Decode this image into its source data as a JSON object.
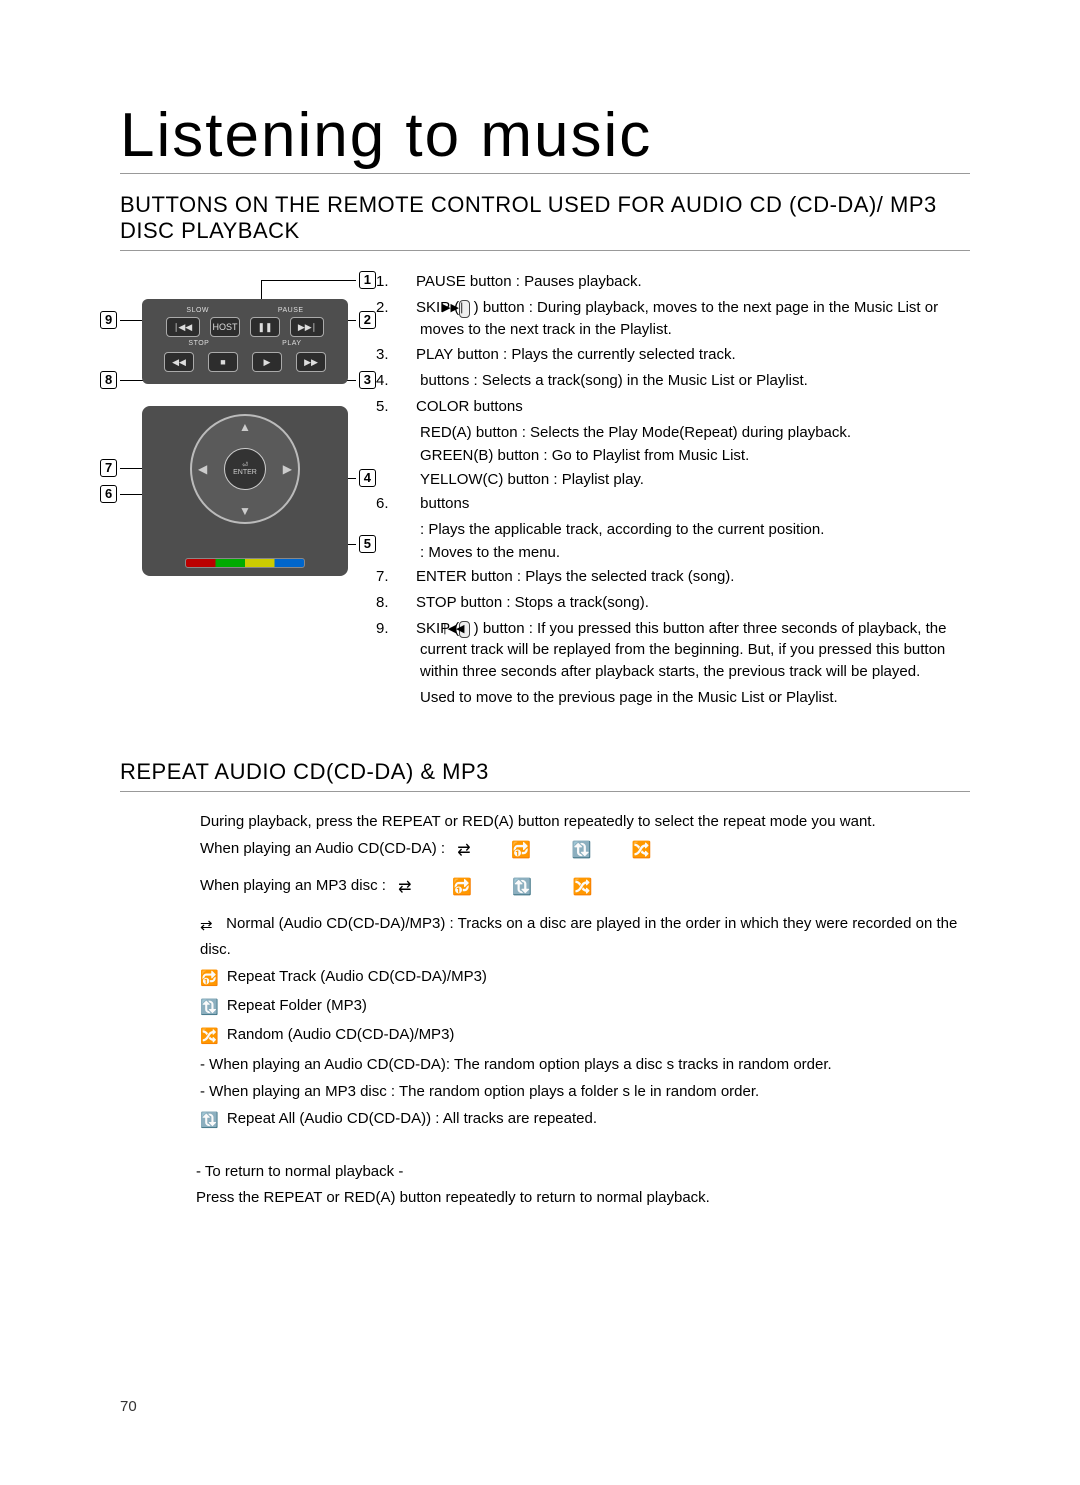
{
  "title": "Listening to music",
  "section1_heading": "BUTTONS ON THE REMOTE CONTROL USED FOR AUDIO CD (CD-DA)/ MP3 DISC PLAYBACK",
  "section2_heading": "REPEAT AUDIO CD(CD-DA) & MP3",
  "page_number": "70",
  "remote": {
    "panel1_labels": [
      "SLOW",
      "PAUSE"
    ],
    "panel1b_labels": [
      "STOP",
      "PLAY"
    ],
    "row1": [
      "∣◀◀",
      "HOST",
      "❚❚",
      "▶▶∣"
    ],
    "row2": [
      "◀◀",
      "■",
      "▶",
      "▶▶"
    ],
    "center_top": "⏎",
    "center_label": "ENTER",
    "callouts": {
      "c1": "1",
      "c2": "2",
      "c3": "3",
      "c4": "4",
      "c5": "5",
      "c6": "6",
      "c7": "7",
      "c8": "8",
      "c9": "9"
    }
  },
  "rc_items": [
    {
      "n": "1.",
      "text": "PAUSE button : Pauses playback."
    },
    {
      "n": "2.",
      "text_pre": "SKIP (",
      "icon": "▶▶∣",
      "text_post": " ) button : During playback, moves to the next page in the Music List or moves to the next track in the Playlist."
    },
    {
      "n": "3.",
      "text": "PLAY button : Plays the currently selected track."
    },
    {
      "n": "4.",
      "text": "    buttons : Selects a track(song) in the Music List or Playlist."
    },
    {
      "n": "5.",
      "text": "COLOR buttons",
      "sub": [
        "RED(A) button : Selects the Play Mode(Repeat) during playback.",
        "GREEN(B) button : Go to Playlist from Music List.",
        "YELLOW(C) button : Playlist play."
      ]
    },
    {
      "n": "6.",
      "text": "       buttons",
      "sub": [
        ": Plays the applicable track, according to the current position.",
        ": Moves to the menu."
      ]
    },
    {
      "n": "7.",
      "text": "ENTER button : Plays the selected track (song)."
    },
    {
      "n": "8.",
      "text": "STOP button : Stops a track(song)."
    },
    {
      "n": "9.",
      "text_pre": "SKIP (",
      "icon": "∣◀◀",
      "text_post": " ) button : If you pressed this button after three seconds of playback, the current track will be replayed from the beginning. But, if you pressed this button within three seconds after playback starts, the previous track will be played.",
      "tail": "Used to move to the previous page in the Music List or Playlist."
    }
  ],
  "repeat": {
    "intro": "During playback, press the REPEAT or RED(A) button repeatedly to select the repeat mode you want.",
    "audio_line_label": "When playing an Audio CD(CD-DA) : ",
    "audio_icons": "⇄   🔂   🔃   🔀",
    "mp3_line_label": "When playing an MP3 disc : ",
    "mp3_icons": "⇄   🔂   🔃   🔀",
    "descriptions": [
      {
        "icon": "⇄",
        "text": " Normal (Audio CD(CD-DA)/MP3) : Tracks on a disc are played in the order in which they were recorded on the disc."
      },
      {
        "icon": "🔂",
        "text": " Repeat Track (Audio CD(CD-DA)/MP3)"
      },
      {
        "icon": "🔃",
        "text": " Repeat Folder (MP3)"
      },
      {
        "icon": "🔀",
        "text": " Random (Audio CD(CD-DA)/MP3)"
      },
      {
        "icon": "",
        "text": "- When playing an Audio CD(CD-DA):  The random option plays a disc s tracks in random order."
      },
      {
        "icon": "",
        "text": "- When playing an MP3 disc :  The random option plays a folder s   le in random order."
      },
      {
        "icon": "🔃",
        "text": " Repeat All (Audio CD(CD-DA)) : All tracks are repeated."
      }
    ],
    "return_heading": "- To return to normal playback -",
    "return_text": "Press the REPEAT or RED(A) button repeatedly to return to normal playback."
  }
}
